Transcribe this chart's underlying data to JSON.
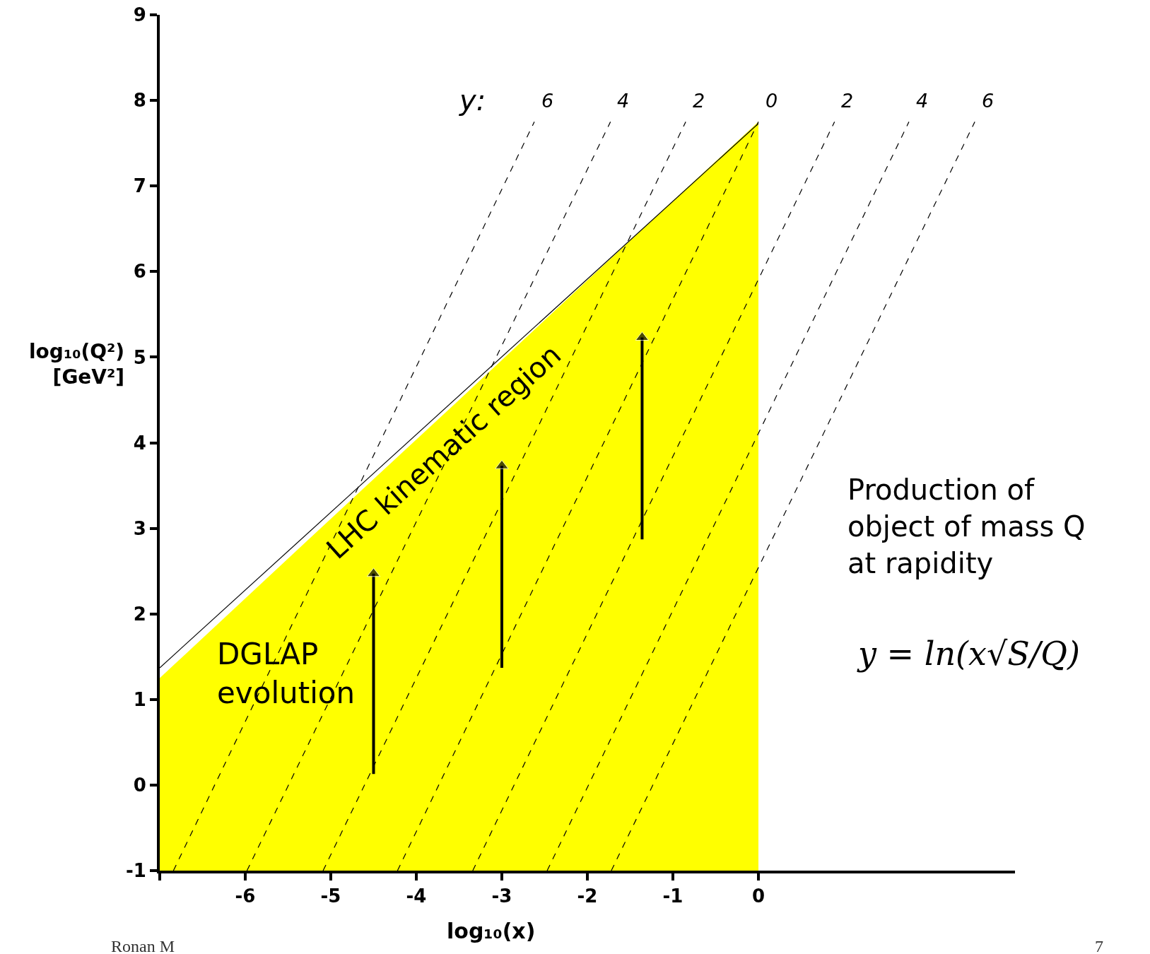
{
  "chart_data": {
    "type": "line",
    "xlabel": "log₁₀(x)",
    "ylabel": "log₁₀(Q²)\n[GeV²]",
    "xlim": [
      -7,
      3
    ],
    "ylim": [
      -1,
      9
    ],
    "xticks": [
      {
        "value": -7,
        "label": null
      },
      -6,
      -5,
      -4,
      -3,
      -2,
      -1,
      0
    ],
    "yticks": [
      -1,
      0,
      1,
      2,
      3,
      4,
      5,
      6,
      7,
      8,
      9
    ],
    "legend": false,
    "series": [
      {
        "type": "area",
        "color": "#ffff00",
        "x": [
          -7,
          -7,
          -5.25,
          -3.5,
          -1.75,
          0,
          0
        ],
        "values": [
          -1,
          1.25,
          2.88,
          4.5,
          6.13,
          7.75,
          -1
        ]
      },
      {
        "color": "#000000",
        "line_style": "solid",
        "x": [
          -7,
          0
        ],
        "values": [
          1.37,
          7.73
        ]
      },
      {
        "name": "6",
        "color": "#000000",
        "line_style": "dashed",
        "x": [
          -6.84,
          -2.62
        ],
        "values": [
          -1,
          7.75
        ]
      },
      {
        "name": "4",
        "color": "#000000",
        "line_style": "dashed",
        "x": [
          -5.98,
          -1.73
        ],
        "values": [
          -1,
          7.75
        ]
      },
      {
        "name": "2",
        "color": "#000000",
        "line_style": "dashed",
        "x": [
          -5.09,
          -0.85
        ],
        "values": [
          -1,
          7.75
        ]
      },
      {
        "name": "0",
        "color": "#000000",
        "line_style": "dashed",
        "x": [
          -4.22,
          0
        ],
        "values": [
          -1,
          7.75
        ]
      },
      {
        "name": "2",
        "color": "#000000",
        "line_style": "dashed",
        "x": [
          -3.34,
          0.89
        ],
        "values": [
          -1,
          7.75
        ]
      },
      {
        "name": "4",
        "color": "#000000",
        "line_style": "dashed",
        "x": [
          -2.47,
          1.76
        ],
        "values": [
          -1,
          7.75
        ]
      },
      {
        "name": "6",
        "color": "#000000",
        "line_style": "dashed",
        "x": [
          -1.72,
          2.53
        ],
        "values": [
          -1,
          7.75
        ]
      },
      {
        "color": "#000000",
        "line_style": "solid",
        "marker": "triangle",
        "x": [
          -4.5,
          -4.5
        ],
        "values": [
          0.13,
          2.47
        ]
      },
      {
        "color": "#000000",
        "line_style": "solid",
        "marker": "triangle",
        "x": [
          -3,
          -3
        ],
        "values": [
          1.37,
          3.73
        ]
      },
      {
        "color": "#000000",
        "line_style": "solid",
        "marker": "triangle",
        "x": [
          -1.36,
          -1.36
        ],
        "values": [
          2.87,
          5.23
        ]
      }
    ],
    "annotations": [
      "y:",
      "LHC kinematic region",
      "DGLAP\nevolution",
      "Production of\nobject of mass Q\nat rapidity",
      "y = ln(x√S/Q)",
      "Ronan M",
      "7"
    ]
  }
}
